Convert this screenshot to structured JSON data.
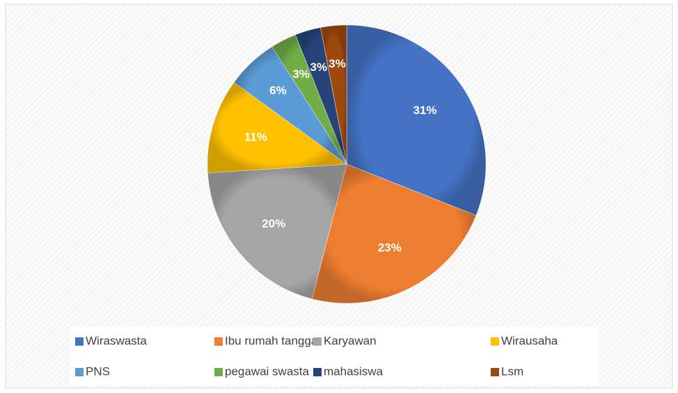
{
  "chart_data": {
    "type": "pie",
    "categories": [
      "Wiraswasta",
      "Ibu rumah tangga",
      "Karyawan",
      "Wirausaha",
      "PNS",
      "pegawai swasta",
      "mahasiswa",
      "Lsm"
    ],
    "values": [
      31,
      23,
      20,
      11,
      6,
      3,
      3,
      3
    ],
    "value_labels": [
      "31%",
      "23%",
      "20%",
      "11%",
      "6%",
      "3%",
      "3%",
      "3%"
    ],
    "colors": [
      "#4472c4",
      "#ed7d31",
      "#a5a5a5",
      "#ffc000",
      "#5b9bd5",
      "#70ad47",
      "#264478",
      "#9e480e"
    ],
    "legend": "bottom"
  }
}
